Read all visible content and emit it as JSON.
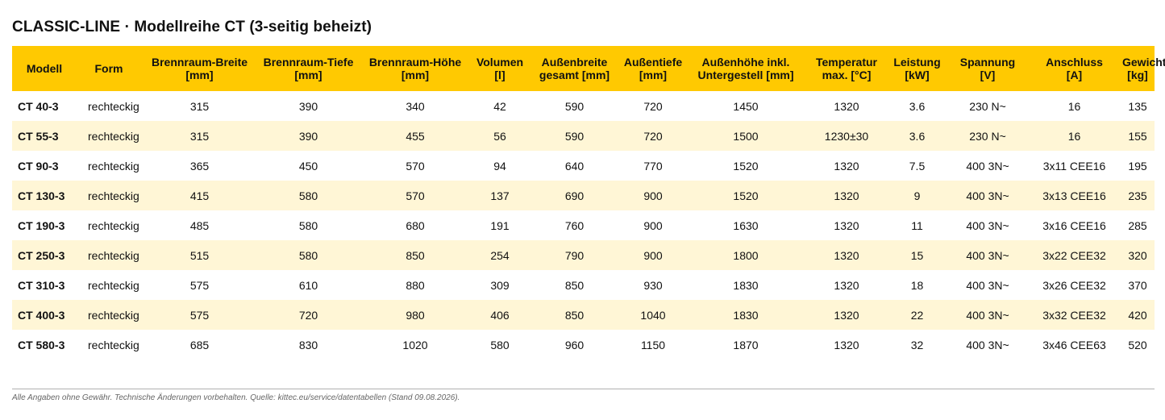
{
  "title": "CLASSIC-LINE · Modellreihe CT (3-seitig beheizt)",
  "table": {
    "headers": [
      {
        "l1": "Modell",
        "l2": ""
      },
      {
        "l1": "Form",
        "l2": ""
      },
      {
        "l1": "Brennraum-Breite",
        "l2": "[mm]"
      },
      {
        "l1": "Brennraum-Tiefe",
        "l2": "[mm]"
      },
      {
        "l1": "Brennraum-Höhe",
        "l2": "[mm]"
      },
      {
        "l1": "Volumen",
        "l2": "[l]"
      },
      {
        "l1": "Außenbreite",
        "l2": "gesamt [mm]"
      },
      {
        "l1": "Außentiefe",
        "l2": "[mm]"
      },
      {
        "l1": "Außenhöhe inkl.",
        "l2": "Untergestell [mm]"
      },
      {
        "l1": "Temperatur",
        "l2": "max. [°C]"
      },
      {
        "l1": "Leistung",
        "l2": "[kW]"
      },
      {
        "l1": "Spannung",
        "l2": "[V]"
      },
      {
        "l1": "Anschluss",
        "l2": "[A]"
      },
      {
        "l1": "Gewicht",
        "l2": "[kg]"
      }
    ],
    "rows": [
      [
        "CT 40-3",
        "rechteckig",
        "315",
        "390",
        "340",
        "42",
        "590",
        "720",
        "1450",
        "1320",
        "3.6",
        "230 N~",
        "16",
        "135"
      ],
      [
        "CT 55-3",
        "rechteckig",
        "315",
        "390",
        "455",
        "56",
        "590",
        "720",
        "1500",
        "1230±30",
        "3.6",
        "230 N~",
        "16",
        "155"
      ],
      [
        "CT 90-3",
        "rechteckig",
        "365",
        "450",
        "570",
        "94",
        "640",
        "770",
        "1520",
        "1320",
        "7.5",
        "400 3N~",
        "3x11 CEE16",
        "195"
      ],
      [
        "CT 130-3",
        "rechteckig",
        "415",
        "580",
        "570",
        "137",
        "690",
        "900",
        "1520",
        "1320",
        "9",
        "400 3N~",
        "3x13 CEE16",
        "235"
      ],
      [
        "CT 190-3",
        "rechteckig",
        "485",
        "580",
        "680",
        "191",
        "760",
        "900",
        "1630",
        "1320",
        "11",
        "400 3N~",
        "3x16 CEE16",
        "285"
      ],
      [
        "CT 250-3",
        "rechteckig",
        "515",
        "580",
        "850",
        "254",
        "790",
        "900",
        "1800",
        "1320",
        "15",
        "400 3N~",
        "3x22 CEE32",
        "320"
      ],
      [
        "CT 310-3",
        "rechteckig",
        "575",
        "610",
        "880",
        "309",
        "850",
        "930",
        "1830",
        "1320",
        "18",
        "400 3N~",
        "3x26 CEE32",
        "370"
      ],
      [
        "CT 400-3",
        "rechteckig",
        "575",
        "720",
        "980",
        "406",
        "850",
        "1040",
        "1830",
        "1320",
        "22",
        "400 3N~",
        "3x32 CEE32",
        "420"
      ],
      [
        "CT 580-3",
        "rechteckig",
        "685",
        "830",
        "1020",
        "580",
        "960",
        "1150",
        "1870",
        "1320",
        "32",
        "400 3N~",
        "3x46 CEE63",
        "520"
      ]
    ]
  },
  "footnote": "Alle Angaben ohne Gewähr. Technische Änderungen vorbehalten. Quelle: kittec.eu/service/datentabellen (Stand 09.08.2026).",
  "colors": {
    "header_bg": "#ffc901",
    "alt_row_bg": "#fff6d6"
  }
}
